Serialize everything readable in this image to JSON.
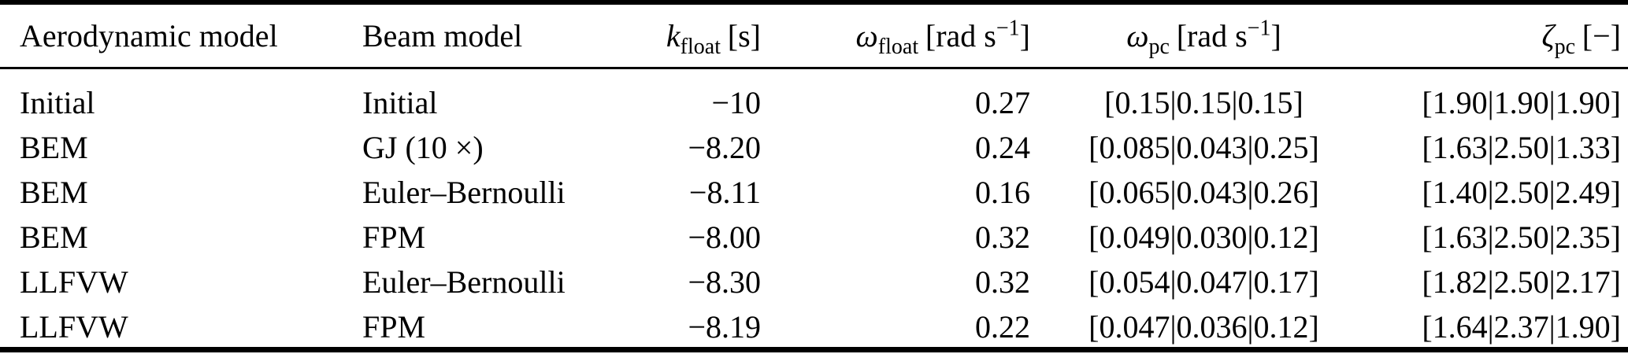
{
  "table": {
    "headers": {
      "aero": "Aerodynamic model",
      "beam": "Beam model",
      "k": {
        "symbol": "k",
        "sub": "float",
        "unit": "[s]"
      },
      "wfloat": {
        "symbol": "ω",
        "sub": "float",
        "unit_open": "[rad s",
        "sup": "−1",
        "unit_close": "]"
      },
      "wpc": {
        "symbol": "ω",
        "sub": "pc",
        "unit_open": "[rad s",
        "sup": "−1",
        "unit_close": "]"
      },
      "zpc": {
        "symbol": "ζ",
        "sub": "pc",
        "unit": "[−]"
      }
    },
    "rows": [
      {
        "aero": "Initial",
        "beam": "Initial",
        "k": "−10",
        "wfloat": "0.27",
        "wpc": "[0.15|0.15|0.15]",
        "zpc": "[1.90|1.90|1.90]"
      },
      {
        "aero": "BEM",
        "beam": "GJ (10 ×)",
        "k": "−8.20",
        "wfloat": "0.24",
        "wpc": "[0.085|0.043|0.25]",
        "zpc": "[1.63|2.50|1.33]"
      },
      {
        "aero": "BEM",
        "beam": "Euler–Bernoulli",
        "k": "−8.11",
        "wfloat": "0.16",
        "wpc": "[0.065|0.043|0.26]",
        "zpc": "[1.40|2.50|2.49]"
      },
      {
        "aero": "BEM",
        "beam": "FPM",
        "k": "−8.00",
        "wfloat": "0.32",
        "wpc": "[0.049|0.030|0.12]",
        "zpc": "[1.63|2.50|2.35]"
      },
      {
        "aero": "LLFVW",
        "beam": "Euler–Bernoulli",
        "k": "−8.30",
        "wfloat": "0.32",
        "wpc": "[0.054|0.047|0.17]",
        "zpc": "[1.82|2.50|2.17]"
      },
      {
        "aero": "LLFVW",
        "beam": "FPM",
        "k": "−8.19",
        "wfloat": "0.22",
        "wpc": "[0.047|0.036|0.12]",
        "zpc": "[1.64|2.37|1.90]"
      }
    ]
  },
  "colors": {
    "text": "#000000",
    "rule": "#000000",
    "background": "#ffffff"
  }
}
